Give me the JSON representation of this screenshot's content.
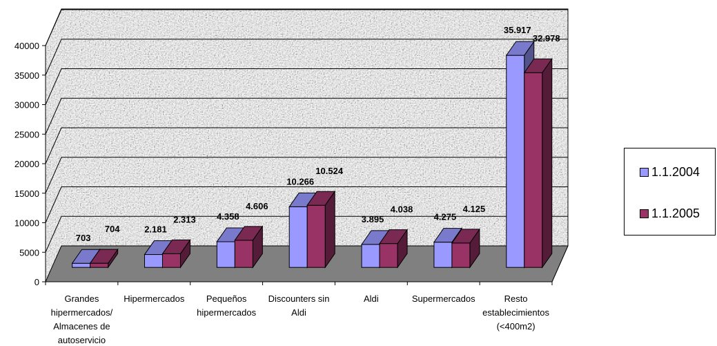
{
  "chart_data": {
    "type": "bar",
    "categories": [
      [
        "Grandes",
        "hipermercados/",
        "Almacenes de",
        "autoservicio"
      ],
      [
        "Hipermercados"
      ],
      [
        "Pequeños",
        "hipermercados"
      ],
      [
        "Discounters sin",
        "Aldi"
      ],
      [
        "Aldi"
      ],
      [
        "Supermercados"
      ],
      [
        "Resto",
        "establecimientos",
        "(<400m2)"
      ]
    ],
    "series": [
      {
        "name": "1.1.2004",
        "color": "#9999ff",
        "values": [
          703,
          2181,
          4358,
          10266,
          3895,
          4275,
          35917
        ],
        "labels": [
          "703",
          "2.181",
          "4.358",
          "10.266",
          "3.895",
          "4.275",
          "35.917"
        ]
      },
      {
        "name": "1.1.2005",
        "color": "#993366",
        "values": [
          704,
          2313,
          4606,
          10524,
          4038,
          4125,
          32978
        ],
        "labels": [
          "704",
          "2.313",
          "4.606",
          "10.524",
          "4.038",
          "4.125",
          "32.978"
        ]
      }
    ],
    "yticks": [
      "0",
      "5000",
      "10000",
      "15000",
      "20000",
      "25000",
      "30000",
      "35000",
      "40000"
    ],
    "ylim": [
      0,
      40000
    ],
    "grid": true,
    "legend_position": "right",
    "wall": "granite texture",
    "floor_color": "#808080"
  }
}
